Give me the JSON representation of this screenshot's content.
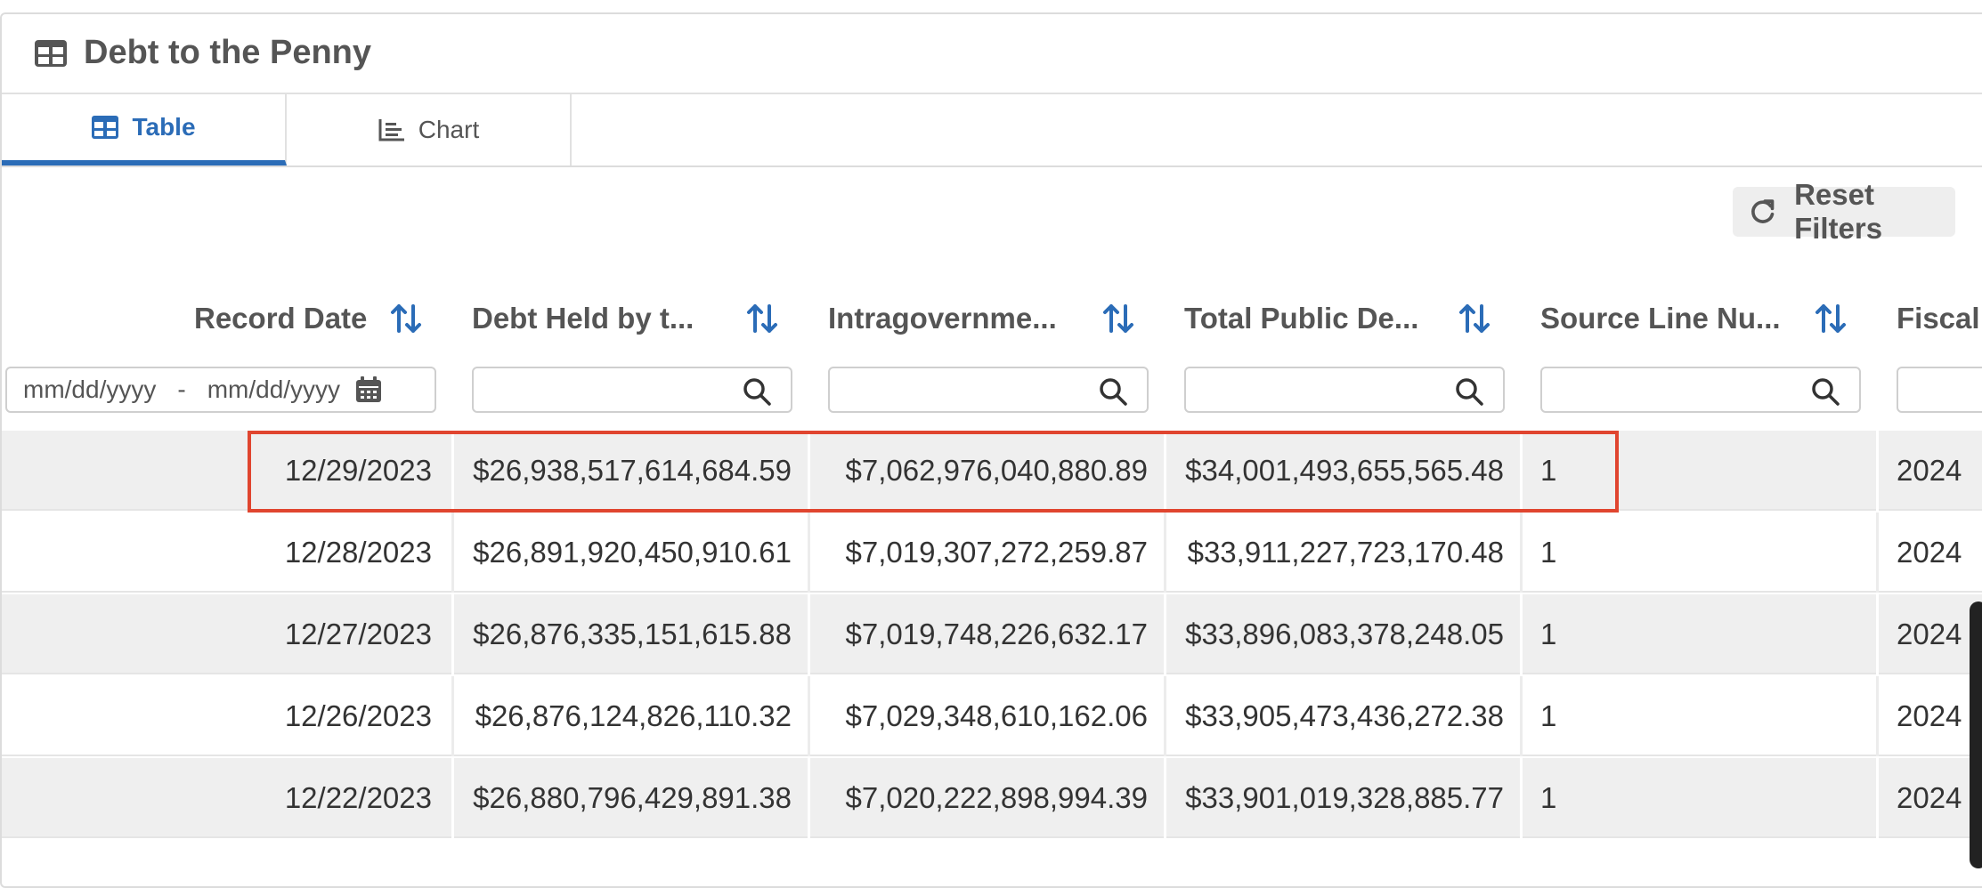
{
  "header": {
    "title": "Debt to the Penny",
    "icon": "table-icon"
  },
  "tabs": [
    {
      "label": "Table",
      "icon": "table-icon",
      "active": true
    },
    {
      "label": "Chart",
      "icon": "chart-icon",
      "active": false
    }
  ],
  "reset": {
    "label": "Reset Filters",
    "icon": "refresh-icon"
  },
  "columns": [
    {
      "label": "Record Date"
    },
    {
      "label": "Debt Held by t..."
    },
    {
      "label": "Intragovernme..."
    },
    {
      "label": "Total Public De..."
    },
    {
      "label": "Source Line Nu..."
    },
    {
      "label": "Fiscal"
    }
  ],
  "date_filter": {
    "from_placeholder": "mm/dd/yyyy",
    "separator": "-",
    "to_placeholder": "mm/dd/yyyy"
  },
  "rows": [
    {
      "date": "12/29/2023",
      "public": "$26,938,517,614,684.59",
      "intra": "$7,062,976,040,880.89",
      "total": "$34,001,493,655,565.48",
      "source": "1",
      "fy": "2024"
    },
    {
      "date": "12/28/2023",
      "public": "$26,891,920,450,910.61",
      "intra": "$7,019,307,272,259.87",
      "total": "$33,911,227,723,170.48",
      "source": "1",
      "fy": "2024"
    },
    {
      "date": "12/27/2023",
      "public": "$26,876,335,151,615.88",
      "intra": "$7,019,748,226,632.17",
      "total": "$33,896,083,378,248.05",
      "source": "1",
      "fy": "2024"
    },
    {
      "date": "12/26/2023",
      "public": "$26,876,124,826,110.32",
      "intra": "$7,029,348,610,162.06",
      "total": "$33,905,473,436,272.38",
      "source": "1",
      "fy": "2024"
    },
    {
      "date": "12/22/2023",
      "public": "$26,880,796,429,891.38",
      "intra": "$7,020,222,898,994.39",
      "total": "$33,901,019,328,885.77",
      "source": "1",
      "fy": "2024"
    }
  ],
  "colors": {
    "accent": "#2b6cb7",
    "highlight": "#e0452f"
  }
}
